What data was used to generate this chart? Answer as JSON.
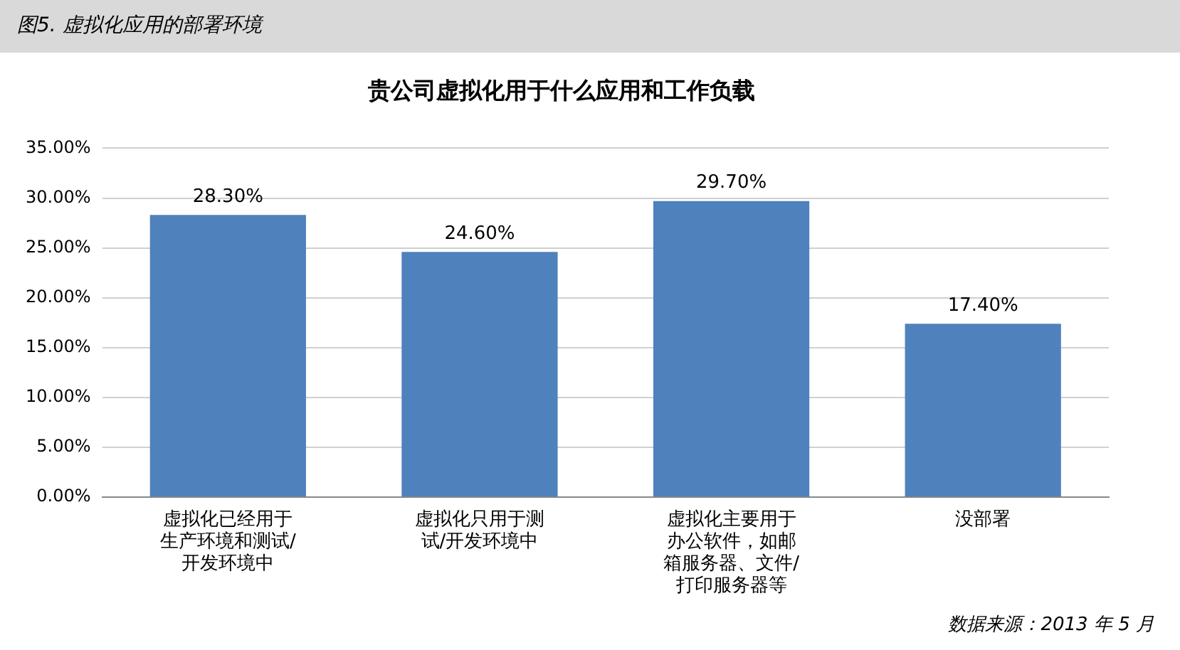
{
  "chart_data": {
    "type": "bar",
    "title": "贵公司虚拟化用于什么应用和工作负载",
    "categories": [
      "虚拟化已经用于生产环境和测试/开发环境中",
      "虚拟化只用于测试/开发环境中",
      "虚拟化主要用于办公软件，如邮箱服务器、文件/打印服务器等",
      "没部署"
    ],
    "values": [
      28.3,
      24.6,
      29.7,
      17.4
    ],
    "value_labels": [
      "28.30%",
      "24.60%",
      "29.70%",
      "17.40%"
    ],
    "color": "#4f81bd",
    "ylim": [
      0,
      35
    ],
    "yticks": [
      {
        "value": 0,
        "label": "0.00%"
      },
      {
        "value": 5,
        "label": "5.00%"
      },
      {
        "value": 10,
        "label": "10.00%"
      },
      {
        "value": 15,
        "label": "15.00%"
      },
      {
        "value": 20,
        "label": "20.00%"
      },
      {
        "value": 25,
        "label": "25.00%"
      },
      {
        "value": 30,
        "label": "30.00%"
      },
      {
        "value": 35,
        "label": "35.00%"
      }
    ],
    "grid": "y",
    "legend": false,
    "annotations": [
      "图5. 虚拟化应用的部署环境",
      "数据来源：2013 年 5 月"
    ]
  }
}
